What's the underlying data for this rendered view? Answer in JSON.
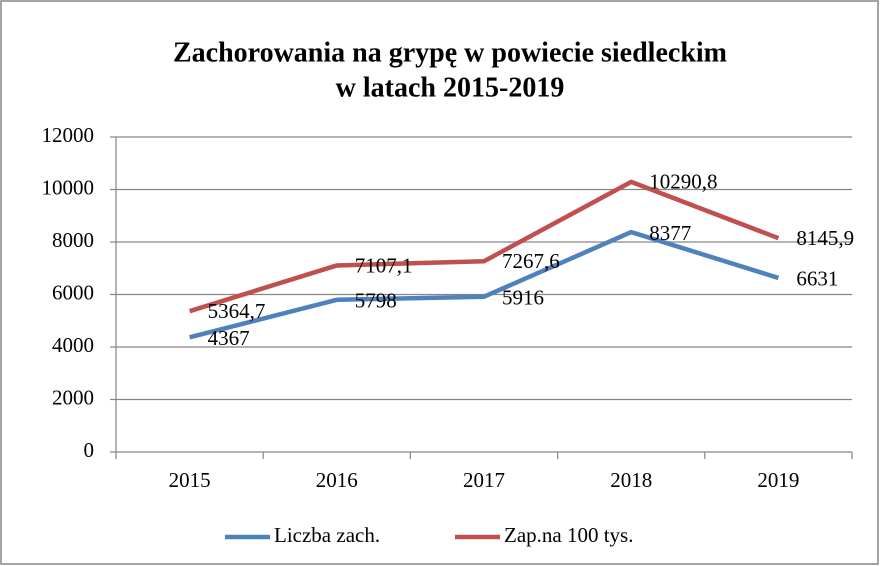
{
  "chart_data": {
    "type": "line",
    "title": [
      "Zachorowania na grypę w powiecie siedleckim",
      "w latach 2015-2019"
    ],
    "categories": [
      "2015",
      "2016",
      "2017",
      "2018",
      "2019"
    ],
    "series": [
      {
        "name": "Liczba zach.",
        "color": "#4f81bd",
        "values": [
          4367,
          5798,
          5916,
          8377,
          6631
        ]
      },
      {
        "name": "Zap.na 100 tys.",
        "color": "#c0504d",
        "values": [
          5364.7,
          7107.1,
          7267.6,
          10290.8,
          8145.9
        ],
        "value_labels": [
          "5364,7",
          "7107,1",
          "7267,6",
          "10290,8",
          "8145,9"
        ]
      }
    ],
    "ylim": [
      0,
      12000
    ],
    "yticks": [
      0,
      2000,
      4000,
      6000,
      8000,
      10000,
      12000
    ],
    "grid": true,
    "legend": "bottom"
  }
}
